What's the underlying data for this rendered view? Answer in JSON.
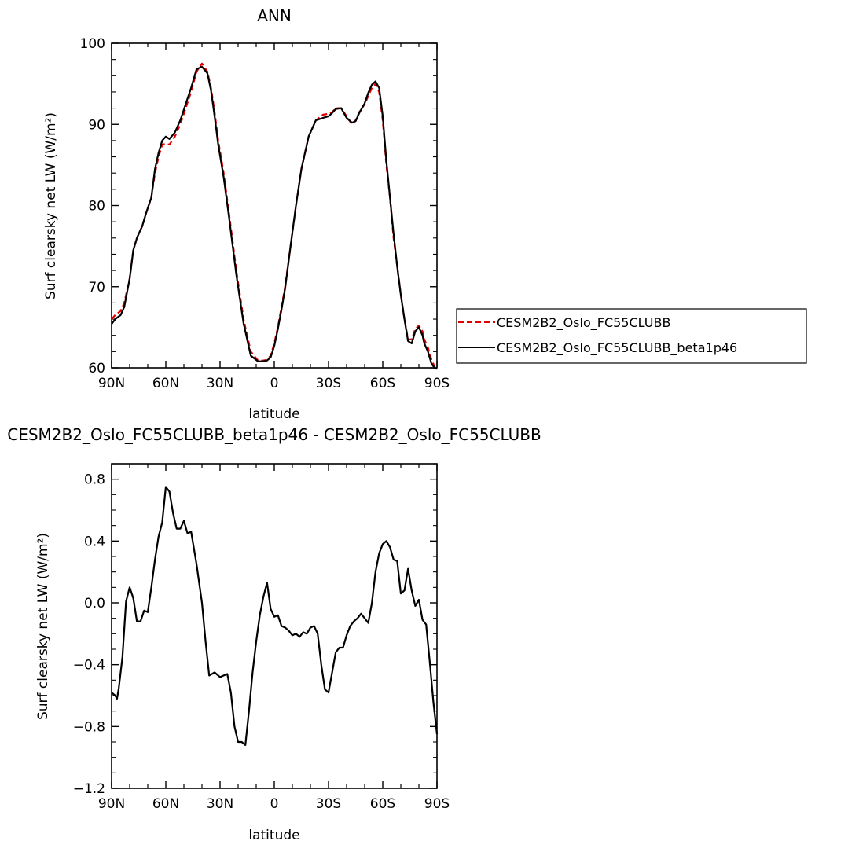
{
  "chart_data": [
    {
      "type": "line",
      "title": "ANN",
      "xlabel": "latitude",
      "ylabel": "Surf clearsky net LW (W/m²)",
      "ylim": [
        60,
        100
      ],
      "yticks": [
        "60",
        "70",
        "80",
        "90",
        "100"
      ],
      "yticks_values": [
        60,
        70,
        80,
        90,
        100
      ],
      "xlim": [
        -90,
        90
      ],
      "xticks": [
        "90N",
        "60N",
        "30N",
        "0",
        "30S",
        "60S",
        "90S"
      ],
      "xticks_values": [
        -90,
        -60,
        -30,
        0,
        30,
        60,
        90
      ],
      "legend_position": "right-outside",
      "series": [
        {
          "name": "CESM2B2_Oslo_FC55CLUBB",
          "color": "#e00000",
          "style": "dashed",
          "x": [
            -90,
            -88,
            -85,
            -83,
            -80,
            -78,
            -76,
            -73,
            -71,
            -68,
            -66,
            -64,
            -62,
            -60,
            -58,
            -55,
            -52,
            -49,
            -46,
            -43,
            -40,
            -37,
            -35,
            -33,
            -31,
            -28,
            -25,
            -21,
            -17,
            -13,
            -9,
            -6,
            -4,
            -2,
            0,
            2,
            4,
            6,
            9,
            12,
            15,
            19,
            23,
            27,
            30,
            32,
            34,
            37,
            40,
            43,
            45,
            47,
            50,
            52,
            54,
            56,
            58,
            60,
            62,
            64,
            66,
            68,
            70,
            72,
            74,
            76,
            78,
            80,
            82,
            83,
            85,
            87,
            89,
            90
          ],
          "y": [
            66.0,
            66.5,
            67.0,
            68.0,
            71.0,
            74.5,
            76.0,
            77.5,
            79.0,
            81.0,
            84.0,
            86.0,
            87.5,
            87.6,
            87.5,
            88.5,
            90.0,
            92.0,
            94.0,
            96.5,
            97.5,
            96.5,
            94.5,
            91.5,
            88.0,
            84.0,
            79.0,
            72.0,
            66.0,
            62.0,
            60.9,
            60.9,
            61.0,
            61.5,
            63.0,
            65.0,
            67.5,
            70.0,
            75.0,
            80.0,
            84.5,
            88.5,
            90.5,
            91.2,
            91.3,
            91.5,
            92.0,
            92.0,
            91.0,
            90.0,
            90.5,
            91.5,
            92.5,
            93.5,
            94.5,
            95.0,
            94.0,
            90.5,
            85.0,
            81.0,
            76.0,
            72.5,
            69.0,
            66.0,
            63.5,
            63.5,
            64.8,
            65.2,
            64.5,
            63.5,
            62.5,
            61.0,
            60.0,
            60.0
          ]
        },
        {
          "name": "CESM2B2_Oslo_FC55CLUBB_beta1p46",
          "color": "#000000",
          "style": "solid",
          "x": [
            -90,
            -88,
            -85,
            -83,
            -80,
            -78,
            -76,
            -73,
            -71,
            -68,
            -66,
            -64,
            -62,
            -60,
            -58,
            -55,
            -52,
            -49,
            -46,
            -43,
            -40,
            -37,
            -35,
            -33,
            -31,
            -28,
            -25,
            -21,
            -17,
            -13,
            -9,
            -6,
            -4,
            -2,
            0,
            2,
            4,
            6,
            9,
            12,
            15,
            19,
            23,
            27,
            30,
            32,
            34,
            37,
            40,
            43,
            45,
            47,
            50,
            52,
            54,
            56,
            58,
            60,
            62,
            64,
            66,
            68,
            70,
            72,
            74,
            76,
            78,
            80,
            82,
            83,
            85,
            87,
            89,
            90
          ],
          "y": [
            65.4,
            66.0,
            66.5,
            67.5,
            71.0,
            74.5,
            76.0,
            77.5,
            79.0,
            81.0,
            84.5,
            86.5,
            88.0,
            88.5,
            88.2,
            89.0,
            90.5,
            92.5,
            94.5,
            96.8,
            97.1,
            96.3,
            94.2,
            91.0,
            87.5,
            83.5,
            78.5,
            71.5,
            65.5,
            61.5,
            60.8,
            60.8,
            60.9,
            61.3,
            62.7,
            64.8,
            67.2,
            69.8,
            75.0,
            80.0,
            84.5,
            88.5,
            90.5,
            90.8,
            91.0,
            91.4,
            91.9,
            92.0,
            90.8,
            90.2,
            90.4,
            91.4,
            92.6,
            93.9,
            94.9,
            95.3,
            94.5,
            91.0,
            85.5,
            81.0,
            76.5,
            72.5,
            69.0,
            66.0,
            63.3,
            63.0,
            64.5,
            65.0,
            64.0,
            63.0,
            62.0,
            60.5,
            59.9,
            59.9
          ]
        }
      ]
    },
    {
      "type": "line",
      "title": "CESM2B2_Oslo_FC55CLUBB_beta1p46 - CESM2B2_Oslo_FC55CLUBB",
      "xlabel": "latitude",
      "ylabel": "Surf clearsky net LW (W/m²)",
      "ylim": [
        -1.2,
        0.9
      ],
      "yticks": [
        "−1.2",
        "−0.8",
        "−0.4",
        "0.0",
        "0.4",
        "0.8"
      ],
      "yticks_values": [
        -1.2,
        -0.8,
        -0.4,
        0.0,
        0.4,
        0.8
      ],
      "xlim": [
        -90,
        90
      ],
      "xticks": [
        "90N",
        "60N",
        "30N",
        "0",
        "30S",
        "60S",
        "90S"
      ],
      "xticks_values": [
        -90,
        -60,
        -30,
        0,
        30,
        60,
        90
      ],
      "series": [
        {
          "color": "#000000",
          "style": "solid",
          "x": [
            -90,
            -88,
            -87,
            -86,
            -84,
            -82,
            -80,
            -78,
            -76,
            -74,
            -72,
            -70,
            -68,
            -66,
            -64,
            -62,
            -60,
            -58,
            -56,
            -54,
            -52,
            -50,
            -48,
            -46,
            -43,
            -40,
            -38,
            -36,
            -33,
            -30,
            -26,
            -24,
            -22,
            -20,
            -18,
            -16,
            -14,
            -12,
            -10,
            -8,
            -6,
            -4,
            -2,
            0,
            2,
            4,
            6,
            8,
            10,
            12,
            14,
            16,
            18,
            20,
            22,
            24,
            26,
            28,
            30,
            32,
            34,
            36,
            38,
            40,
            42,
            44,
            46,
            48,
            50,
            52,
            54,
            56,
            58,
            60,
            62,
            64,
            66,
            68,
            70,
            72,
            74,
            76,
            78,
            80,
            82,
            84,
            86,
            88,
            90
          ],
          "y": [
            -0.58,
            -0.6,
            -0.62,
            -0.55,
            -0.35,
            0.01,
            0.1,
            0.03,
            -0.12,
            -0.12,
            -0.05,
            -0.06,
            0.1,
            0.28,
            0.43,
            0.52,
            0.75,
            0.72,
            0.58,
            0.48,
            0.48,
            0.53,
            0.45,
            0.46,
            0.25,
            0.0,
            -0.25,
            -0.47,
            -0.45,
            -0.48,
            -0.46,
            -0.58,
            -0.8,
            -0.9,
            -0.9,
            -0.92,
            -0.7,
            -0.45,
            -0.25,
            -0.08,
            0.04,
            0.13,
            -0.04,
            -0.09,
            -0.08,
            -0.15,
            -0.16,
            -0.18,
            -0.21,
            -0.2,
            -0.22,
            -0.19,
            -0.2,
            -0.16,
            -0.15,
            -0.2,
            -0.4,
            -0.56,
            -0.58,
            -0.45,
            -0.32,
            -0.29,
            -0.29,
            -0.21,
            -0.15,
            -0.12,
            -0.1,
            -0.07,
            -0.1,
            -0.13,
            0.0,
            0.2,
            0.32,
            0.38,
            0.4,
            0.36,
            0.28,
            0.27,
            0.06,
            0.08,
            0.22,
            0.08,
            -0.02,
            0.02,
            -0.11,
            -0.14,
            -0.38,
            -0.64,
            -0.85
          ]
        }
      ]
    }
  ]
}
